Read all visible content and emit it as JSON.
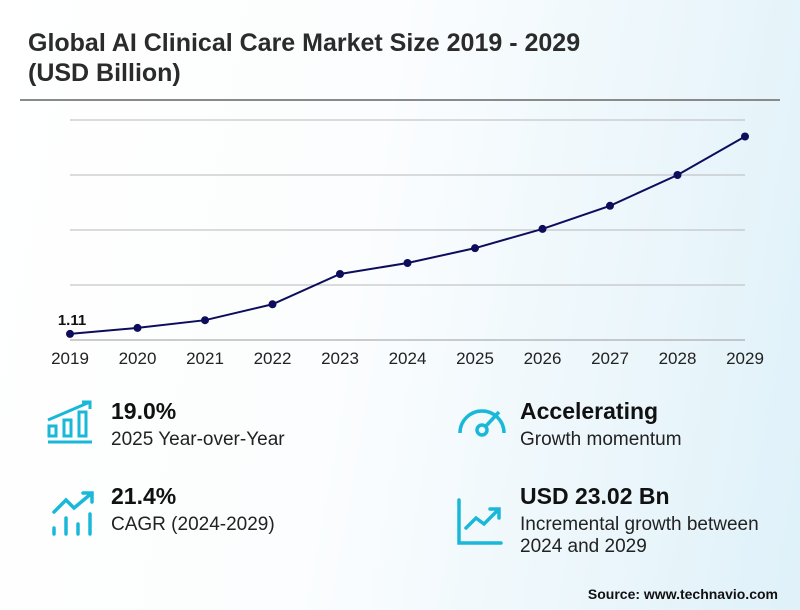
{
  "title": "Global AI Clinical Care Market Size 2019 - 2029 (USD Billion)",
  "chart_data": {
    "type": "line",
    "categories": [
      "2019",
      "2020",
      "2021",
      "2022",
      "2023",
      "2024",
      "2025",
      "2026",
      "2027",
      "2028",
      "2029"
    ],
    "values": [
      1.11,
      2.2,
      3.6,
      6.5,
      12.0,
      14.0,
      16.7,
      20.2,
      24.4,
      30.0,
      37.0
    ],
    "data_labels": {
      "2019": "1.11"
    },
    "ylim": [
      0,
      40
    ],
    "grid": true,
    "line_color": "#0d0d5c",
    "xlabel": "",
    "ylabel": ""
  },
  "stats": [
    {
      "value": "19.0%",
      "label": "2025 Year-over-Year",
      "icon": "bar-chart-growth-icon"
    },
    {
      "value": "Accelerating",
      "label": "Growth momentum",
      "icon": "gauge-icon"
    },
    {
      "value": "21.4%",
      "label": "CAGR (2024-2029)",
      "icon": "trend-bars-icon"
    },
    {
      "value": "USD 23.02 Bn",
      "label": "Incremental growth between 2024 and 2029",
      "icon": "line-chart-icon"
    }
  ],
  "accent_color": "#1ab8d8",
  "source": "Source: www.technavio.com"
}
